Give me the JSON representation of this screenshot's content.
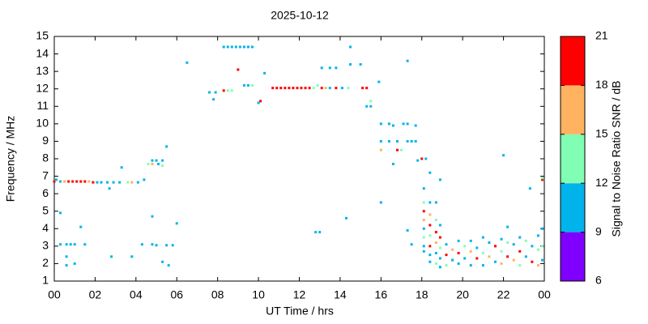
{
  "chart_data": {
    "type": "scatter",
    "title": "2025-10-12",
    "xlabel": "UT Time / hrs",
    "ylabel": "Frequency / MHz",
    "xlim": [
      0,
      24
    ],
    "ylim": [
      1,
      15
    ],
    "xticks": [
      {
        "value": 0,
        "label": "00"
      },
      {
        "value": 2,
        "label": "02"
      },
      {
        "value": 4,
        "label": "04"
      },
      {
        "value": 6,
        "label": "06"
      },
      {
        "value": 8,
        "label": "08"
      },
      10,
      12,
      14,
      16,
      18,
      20,
      22,
      {
        "value": 24,
        "label": "00"
      }
    ],
    "yticks": [
      1,
      2,
      3,
      4,
      5,
      6,
      7,
      8,
      9,
      10,
      11,
      12,
      13,
      14,
      15
    ],
    "colorbar": {
      "label": "Signal to Noise Ratio SNR / dB",
      "clim": [
        6,
        21
      ],
      "ticks": [
        6,
        9,
        12,
        15,
        18,
        21
      ],
      "colors": [
        "#8000ff",
        "#00b4eb",
        "#80ffb4",
        "#ffb360",
        "#ff0000"
      ]
    },
    "points": [
      {
        "x": 0,
        "y": 6.7,
        "snr": 19
      },
      {
        "x": 0.1,
        "y": 6.8,
        "snr": 10
      },
      {
        "x": 0.3,
        "y": 6.7,
        "snr": 10
      },
      {
        "x": 0.5,
        "y": 6.7,
        "snr": 16
      },
      {
        "x": 0.7,
        "y": 6.7,
        "snr": 19
      },
      {
        "x": 0.9,
        "y": 6.7,
        "snr": 19
      },
      {
        "x": 1.1,
        "y": 6.7,
        "snr": 19
      },
      {
        "x": 1.3,
        "y": 6.7,
        "snr": 19
      },
      {
        "x": 1.5,
        "y": 6.7,
        "snr": 19
      },
      {
        "x": 1.7,
        "y": 6.7,
        "snr": 16
      },
      {
        "x": 1.9,
        "y": 6.65,
        "snr": 19
      },
      {
        "x": 2.1,
        "y": 6.65,
        "snr": 10
      },
      {
        "x": 2.3,
        "y": 6.65,
        "snr": 10
      },
      {
        "x": 2.6,
        "y": 6.65,
        "snr": 10
      },
      {
        "x": 2.9,
        "y": 6.65,
        "snr": 10
      },
      {
        "x": 3.2,
        "y": 6.65,
        "snr": 10
      },
      {
        "x": 3.6,
        "y": 6.65,
        "snr": 13
      },
      {
        "x": 3.8,
        "y": 6.65,
        "snr": 16
      },
      {
        "x": 4.1,
        "y": 6.65,
        "snr": 10
      },
      {
        "x": 4.4,
        "y": 6.8,
        "snr": 10
      },
      {
        "x": 3.3,
        "y": 7.5,
        "snr": 10
      },
      {
        "x": 2.7,
        "y": 6.3,
        "snr": 10
      },
      {
        "x": 0.3,
        "y": 4.9,
        "snr": 10
      },
      {
        "x": 0.3,
        "y": 3.1,
        "snr": 10
      },
      {
        "x": 0.6,
        "y": 3.1,
        "snr": 10
      },
      {
        "x": 0.8,
        "y": 3.1,
        "snr": 10
      },
      {
        "x": 1,
        "y": 3.1,
        "snr": 10
      },
      {
        "x": 1.5,
        "y": 3.1,
        "snr": 10
      },
      {
        "x": 0.6,
        "y": 2.4,
        "snr": 10
      },
      {
        "x": 0.6,
        "y": 1.9,
        "snr": 10
      },
      {
        "x": 1,
        "y": 2,
        "snr": 10
      },
      {
        "x": 1.3,
        "y": 4.1,
        "snr": 10
      },
      {
        "x": 2.8,
        "y": 2.4,
        "snr": 10
      },
      {
        "x": 3.8,
        "y": 2.4,
        "snr": 10
      },
      {
        "x": 4.3,
        "y": 3.1,
        "snr": 10
      },
      {
        "x": 4.8,
        "y": 3.1,
        "snr": 10
      },
      {
        "x": 5,
        "y": 3.05,
        "snr": 10
      },
      {
        "x": 5.5,
        "y": 3.05,
        "snr": 10
      },
      {
        "x": 5.8,
        "y": 3.05,
        "snr": 10
      },
      {
        "x": 4.8,
        "y": 4.7,
        "snr": 10
      },
      {
        "x": 6,
        "y": 4.3,
        "snr": 10
      },
      {
        "x": 5.3,
        "y": 2.1,
        "snr": 10
      },
      {
        "x": 5.6,
        "y": 1.9,
        "snr": 10
      },
      {
        "x": 4.6,
        "y": 7.7,
        "snr": 13
      },
      {
        "x": 4.8,
        "y": 7.9,
        "snr": 10
      },
      {
        "x": 4.8,
        "y": 7.7,
        "snr": 16
      },
      {
        "x": 5,
        "y": 7.9,
        "snr": 10
      },
      {
        "x": 5.1,
        "y": 7.7,
        "snr": 10
      },
      {
        "x": 5.3,
        "y": 7.9,
        "snr": 10
      },
      {
        "x": 5.3,
        "y": 7.6,
        "snr": 13
      },
      {
        "x": 5.5,
        "y": 8.7,
        "snr": 10
      },
      {
        "x": 6.5,
        "y": 13.5,
        "snr": 10
      },
      {
        "x": 7.6,
        "y": 11.8,
        "snr": 10
      },
      {
        "x": 7.8,
        "y": 11.4,
        "snr": 10
      },
      {
        "x": 7.9,
        "y": 11.8,
        "snr": 10
      },
      {
        "x": 8.3,
        "y": 11.9,
        "snr": 19
      },
      {
        "x": 8.5,
        "y": 11.9,
        "snr": 13
      },
      {
        "x": 8.7,
        "y": 11.9,
        "snr": 13
      },
      {
        "x": 8.3,
        "y": 14.4,
        "snr": 10
      },
      {
        "x": 8.5,
        "y": 14.4,
        "snr": 10
      },
      {
        "x": 8.7,
        "y": 14.4,
        "snr": 10
      },
      {
        "x": 8.9,
        "y": 14.4,
        "snr": 10
      },
      {
        "x": 9.1,
        "y": 14.4,
        "snr": 10
      },
      {
        "x": 9.3,
        "y": 14.4,
        "snr": 10
      },
      {
        "x": 9.5,
        "y": 14.4,
        "snr": 10
      },
      {
        "x": 9.7,
        "y": 14.4,
        "snr": 10
      },
      {
        "x": 9,
        "y": 13.1,
        "snr": 19
      },
      {
        "x": 9.3,
        "y": 12.2,
        "snr": 10
      },
      {
        "x": 9.5,
        "y": 12.2,
        "snr": 10
      },
      {
        "x": 9.7,
        "y": 12.2,
        "snr": 13
      },
      {
        "x": 10,
        "y": 11.2,
        "snr": 10
      },
      {
        "x": 10.1,
        "y": 11.3,
        "snr": 19
      },
      {
        "x": 10.3,
        "y": 12.9,
        "snr": 10
      },
      {
        "x": 10.7,
        "y": 12.05,
        "snr": 19
      },
      {
        "x": 10.9,
        "y": 12.05,
        "snr": 19
      },
      {
        "x": 11.1,
        "y": 12.05,
        "snr": 19
      },
      {
        "x": 11.3,
        "y": 12.05,
        "snr": 19
      },
      {
        "x": 11.5,
        "y": 12.05,
        "snr": 19
      },
      {
        "x": 11.7,
        "y": 12.05,
        "snr": 19
      },
      {
        "x": 11.9,
        "y": 12.05,
        "snr": 19
      },
      {
        "x": 12.1,
        "y": 12.05,
        "snr": 19
      },
      {
        "x": 12.3,
        "y": 12.05,
        "snr": 19
      },
      {
        "x": 12.5,
        "y": 12.05,
        "snr": 19
      },
      {
        "x": 12.7,
        "y": 12.05,
        "snr": 13
      },
      {
        "x": 12.9,
        "y": 12.2,
        "snr": 13
      },
      {
        "x": 13.1,
        "y": 12.05,
        "snr": 19
      },
      {
        "x": 13.3,
        "y": 12.05,
        "snr": 16
      },
      {
        "x": 13.5,
        "y": 12.05,
        "snr": 10
      },
      {
        "x": 13.8,
        "y": 12.05,
        "snr": 19
      },
      {
        "x": 14.1,
        "y": 12.05,
        "snr": 10
      },
      {
        "x": 14.4,
        "y": 12.05,
        "snr": 13
      },
      {
        "x": 15.1,
        "y": 12.05,
        "snr": 19
      },
      {
        "x": 15.3,
        "y": 12.05,
        "snr": 19
      },
      {
        "x": 13.1,
        "y": 13.2,
        "snr": 10
      },
      {
        "x": 13.5,
        "y": 13.2,
        "snr": 10
      },
      {
        "x": 13.8,
        "y": 13.2,
        "snr": 10
      },
      {
        "x": 14.5,
        "y": 14.4,
        "snr": 10
      },
      {
        "x": 14.5,
        "y": 13.4,
        "snr": 10
      },
      {
        "x": 15,
        "y": 13.4,
        "snr": 10
      },
      {
        "x": 15.9,
        "y": 12.4,
        "snr": 10
      },
      {
        "x": 15.5,
        "y": 11,
        "snr": 10
      },
      {
        "x": 15.5,
        "y": 11.3,
        "snr": 13
      },
      {
        "x": 15.3,
        "y": 11,
        "snr": 10
      },
      {
        "x": 13,
        "y": 3.8,
        "snr": 10
      },
      {
        "x": 12.8,
        "y": 3.8,
        "snr": 10
      },
      {
        "x": 14.3,
        "y": 4.6,
        "snr": 10
      },
      {
        "x": 16,
        "y": 10,
        "snr": 10
      },
      {
        "x": 16,
        "y": 9,
        "snr": 10
      },
      {
        "x": 16,
        "y": 8.5,
        "snr": 16
      },
      {
        "x": 16.4,
        "y": 10,
        "snr": 10
      },
      {
        "x": 16.6,
        "y": 9.9,
        "snr": 10
      },
      {
        "x": 16.4,
        "y": 9,
        "snr": 10
      },
      {
        "x": 16.8,
        "y": 9,
        "snr": 10
      },
      {
        "x": 16.8,
        "y": 8.5,
        "snr": 19
      },
      {
        "x": 17,
        "y": 8.5,
        "snr": 13
      },
      {
        "x": 17.1,
        "y": 10,
        "snr": 10
      },
      {
        "x": 17.3,
        "y": 10,
        "snr": 10
      },
      {
        "x": 17.3,
        "y": 9,
        "snr": 10
      },
      {
        "x": 17.5,
        "y": 9,
        "snr": 10
      },
      {
        "x": 17.7,
        "y": 9.9,
        "snr": 10
      },
      {
        "x": 17.7,
        "y": 9,
        "snr": 10
      },
      {
        "x": 17.3,
        "y": 13.6,
        "snr": 10
      },
      {
        "x": 16.6,
        "y": 7.7,
        "snr": 10
      },
      {
        "x": 16,
        "y": 5.5,
        "snr": 10
      },
      {
        "x": 17.3,
        "y": 3.9,
        "snr": 10
      },
      {
        "x": 17.5,
        "y": 3.1,
        "snr": 10
      },
      {
        "x": 17.8,
        "y": 7.9,
        "snr": 10
      },
      {
        "x": 18,
        "y": 8,
        "snr": 19
      },
      {
        "x": 18.2,
        "y": 8,
        "snr": 10
      },
      {
        "x": 18.1,
        "y": 6.3,
        "snr": 10
      },
      {
        "x": 18.1,
        "y": 5.5,
        "snr": 13
      },
      {
        "x": 18.1,
        "y": 5,
        "snr": 19
      },
      {
        "x": 18.1,
        "y": 4.5,
        "snr": 16
      },
      {
        "x": 18.1,
        "y": 4,
        "snr": 10
      },
      {
        "x": 18.1,
        "y": 3.5,
        "snr": 13
      },
      {
        "x": 18.1,
        "y": 3,
        "snr": 10
      },
      {
        "x": 18.1,
        "y": 2.7,
        "snr": 10
      },
      {
        "x": 18.4,
        "y": 7.2,
        "snr": 10
      },
      {
        "x": 18.4,
        "y": 5.5,
        "snr": 10
      },
      {
        "x": 18.4,
        "y": 4.8,
        "snr": 16
      },
      {
        "x": 18.4,
        "y": 4.2,
        "snr": 19
      },
      {
        "x": 18.4,
        "y": 3.6,
        "snr": 13
      },
      {
        "x": 18.4,
        "y": 3,
        "snr": 19
      },
      {
        "x": 18.4,
        "y": 2.5,
        "snr": 10
      },
      {
        "x": 18.4,
        "y": 2.1,
        "snr": 10
      },
      {
        "x": 18.7,
        "y": 5.5,
        "snr": 10
      },
      {
        "x": 18.7,
        "y": 4.5,
        "snr": 13
      },
      {
        "x": 18.7,
        "y": 3.8,
        "snr": 19
      },
      {
        "x": 18.7,
        "y": 3.2,
        "snr": 16
      },
      {
        "x": 18.7,
        "y": 2.6,
        "snr": 10
      },
      {
        "x": 18.7,
        "y": 2,
        "snr": 13
      },
      {
        "x": 18.9,
        "y": 6.8,
        "snr": 10
      },
      {
        "x": 18.9,
        "y": 4.2,
        "snr": 10
      },
      {
        "x": 18.9,
        "y": 3.5,
        "snr": 19
      },
      {
        "x": 18.9,
        "y": 2.9,
        "snr": 13
      },
      {
        "x": 18.9,
        "y": 2.3,
        "snr": 10
      },
      {
        "x": 18.9,
        "y": 1.8,
        "snr": 10
      },
      {
        "x": 19.2,
        "y": 3.1,
        "snr": 10
      },
      {
        "x": 19.2,
        "y": 2.5,
        "snr": 19
      },
      {
        "x": 19.2,
        "y": 1.9,
        "snr": 13
      },
      {
        "x": 19.5,
        "y": 2.8,
        "snr": 16
      },
      {
        "x": 19.5,
        "y": 2.2,
        "snr": 10
      },
      {
        "x": 19.8,
        "y": 3.3,
        "snr": 10
      },
      {
        "x": 19.8,
        "y": 2.6,
        "snr": 19
      },
      {
        "x": 19.8,
        "y": 2,
        "snr": 10
      },
      {
        "x": 20.1,
        "y": 3,
        "snr": 13
      },
      {
        "x": 20.1,
        "y": 2.3,
        "snr": 10
      },
      {
        "x": 20.4,
        "y": 3.3,
        "snr": 10
      },
      {
        "x": 20.4,
        "y": 2.7,
        "snr": 16
      },
      {
        "x": 20.4,
        "y": 1.9,
        "snr": 10
      },
      {
        "x": 20.7,
        "y": 2.9,
        "snr": 10
      },
      {
        "x": 20.7,
        "y": 2.3,
        "snr": 19
      },
      {
        "x": 21,
        "y": 3.5,
        "snr": 10
      },
      {
        "x": 21,
        "y": 2.6,
        "snr": 13
      },
      {
        "x": 21,
        "y": 1.9,
        "snr": 10
      },
      {
        "x": 21.3,
        "y": 3.2,
        "snr": 10
      },
      {
        "x": 21.3,
        "y": 2.4,
        "snr": 16
      },
      {
        "x": 21.6,
        "y": 3,
        "snr": 19
      },
      {
        "x": 21.6,
        "y": 2.1,
        "snr": 10
      },
      {
        "x": 21.9,
        "y": 3.4,
        "snr": 10
      },
      {
        "x": 21.9,
        "y": 2.7,
        "snr": 13
      },
      {
        "x": 21.9,
        "y": 2,
        "snr": 16
      },
      {
        "x": 22.2,
        "y": 3.2,
        "snr": 13
      },
      {
        "x": 22.2,
        "y": 2.4,
        "snr": 19
      },
      {
        "x": 22.5,
        "y": 3.1,
        "snr": 10
      },
      {
        "x": 22.5,
        "y": 2.2,
        "snr": 16
      },
      {
        "x": 22.8,
        "y": 3.5,
        "snr": 10
      },
      {
        "x": 22.8,
        "y": 2.7,
        "snr": 19
      },
      {
        "x": 22.8,
        "y": 1.9,
        "snr": 13
      },
      {
        "x": 23.1,
        "y": 3.3,
        "snr": 13
      },
      {
        "x": 23.1,
        "y": 2.4,
        "snr": 10
      },
      {
        "x": 23.4,
        "y": 3,
        "snr": 10
      },
      {
        "x": 23.4,
        "y": 2.1,
        "snr": 19
      },
      {
        "x": 23.7,
        "y": 3.6,
        "snr": 10
      },
      {
        "x": 23.7,
        "y": 2.8,
        "snr": 13
      },
      {
        "x": 23.7,
        "y": 1.9,
        "snr": 16
      },
      {
        "x": 23.9,
        "y": 4,
        "snr": 10
      },
      {
        "x": 23.9,
        "y": 3,
        "snr": 13
      },
      {
        "x": 23.9,
        "y": 2.2,
        "snr": 10
      },
      {
        "x": 22,
        "y": 8.2,
        "snr": 10
      },
      {
        "x": 22.2,
        "y": 4.1,
        "snr": 10
      },
      {
        "x": 23.3,
        "y": 6.3,
        "snr": 10
      },
      {
        "x": 23.9,
        "y": 6.8,
        "snr": 19
      },
      {
        "x": 23.9,
        "y": 6.9,
        "snr": 13
      }
    ]
  }
}
